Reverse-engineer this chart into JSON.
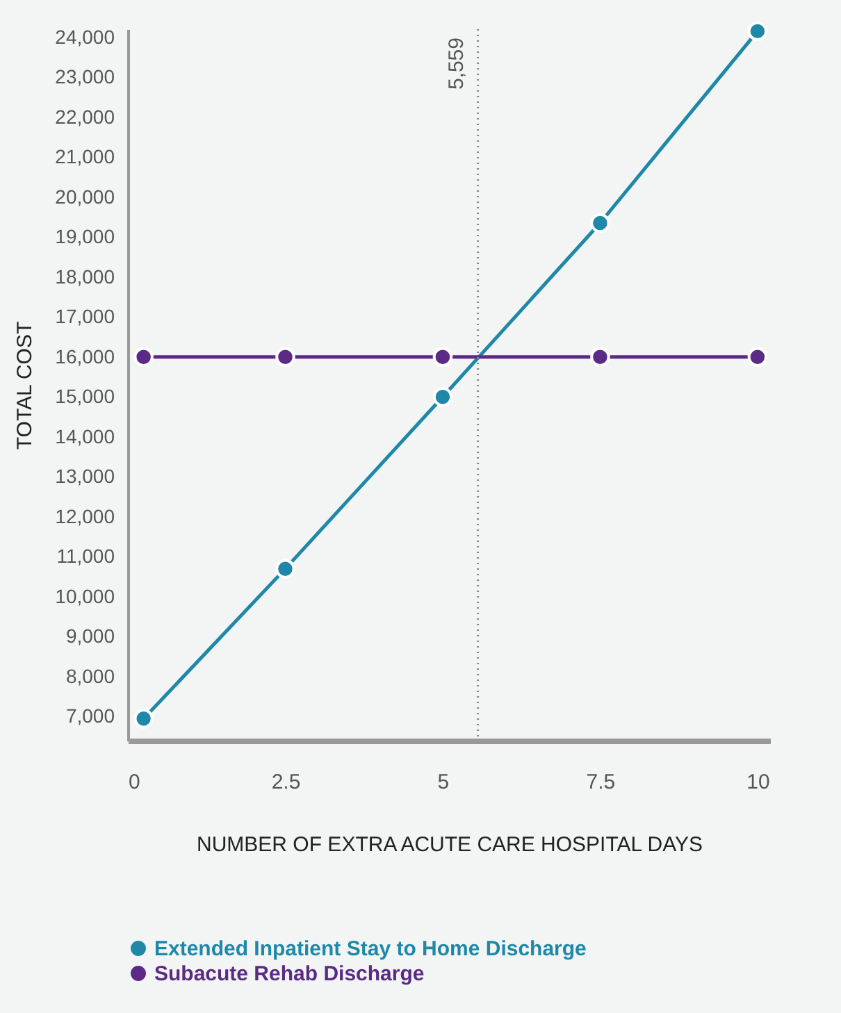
{
  "chart_data": {
    "type": "line",
    "xlabel": "NUMBER OF EXTRA ACUTE CARE HOSPITAL DAYS",
    "ylabel": "TOTAL COST",
    "x": [
      0.25,
      2.5,
      5,
      7.5,
      10
    ],
    "series": [
      {
        "name": "Extended Inpatient Stay to Home Discharge",
        "color": "#1f88a8",
        "values": [
          6950,
          10700,
          15000,
          19350,
          24150
        ]
      },
      {
        "name": "Subacute Rehab Discharge",
        "color": "#5b2a86",
        "values": [
          16000,
          16000,
          16000,
          16000,
          16000
        ]
      }
    ],
    "xlim": [
      0,
      10.2
    ],
    "xticks": [
      0,
      2.5,
      5,
      7.5,
      10
    ],
    "ylim": [
      6400,
      24200
    ],
    "yticks": [
      {
        "value": 7000,
        "label": "7,000"
      },
      {
        "value": 8000,
        "label": "8,000"
      },
      {
        "value": 9000,
        "label": "9,000"
      },
      {
        "value": 10000,
        "label": "10,000"
      },
      {
        "value": 11000,
        "label": "11,000"
      },
      {
        "value": 12000,
        "label": "12,000"
      },
      {
        "value": 13000,
        "label": "13,000"
      },
      {
        "value": 14000,
        "label": "14,000"
      },
      {
        "value": 15000,
        "label": "15,000"
      },
      {
        "value": 16000,
        "label": "16,000"
      },
      {
        "value": 17000,
        "label": "17,000"
      },
      {
        "value": 18000,
        "label": "18,000"
      },
      {
        "value": 19000,
        "label": "19,000"
      },
      {
        "value": 20000,
        "label": "20,000"
      },
      {
        "value": 21000,
        "label": "21,000"
      },
      {
        "value": 22000,
        "label": "22,000"
      },
      {
        "value": 23000,
        "label": "23,000"
      },
      {
        "value": 24000,
        "label": "24,000"
      }
    ],
    "ref_lines": [
      {
        "axis": "x",
        "value": 5.559,
        "label": "5,559",
        "color": "#888888",
        "line_style": "dotted"
      }
    ],
    "grid": false,
    "legend": "bottom",
    "marker": "circle",
    "line_style": "solid"
  }
}
